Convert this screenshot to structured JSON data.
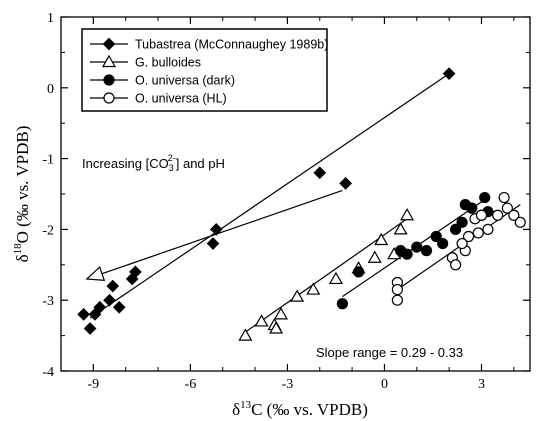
{
  "chart_data": {
    "type": "scatter",
    "xlabel": "δ13C (‰ vs. VPDB)",
    "ylabel": "δ18O (‰ vs. VPDB)",
    "xlabel_parts": {
      "delta": "δ",
      "sup": "13",
      "rest": "C (‰ vs. VPDB)"
    },
    "ylabel_parts": {
      "delta": "δ",
      "sup": "18",
      "rest": "O (‰ vs. VPDB)"
    },
    "xlim": [
      -10,
      4.5
    ],
    "ylim": [
      -4,
      1
    ],
    "xticks": [
      -9,
      -6,
      -3,
      0,
      3
    ],
    "xtick_labels": [
      "-9",
      "-6",
      "-3",
      "0",
      "3"
    ],
    "yticks": [
      -4,
      -3,
      -2,
      -1,
      0,
      1
    ],
    "ytick_labels": [
      "-4",
      "-3",
      "-2",
      "-1",
      "0",
      "1"
    ],
    "grid": false,
    "legend_position": "top-left",
    "series": [
      {
        "name": "Tubastrea (McConnaughey 1989b)",
        "marker": "diamond",
        "filled": true,
        "points": [
          [
            2.0,
            0.2
          ],
          [
            -1.2,
            -1.35
          ],
          [
            -2.0,
            -1.2
          ],
          [
            -5.2,
            -2.0
          ],
          [
            -5.3,
            -2.2
          ],
          [
            -7.7,
            -2.6
          ],
          [
            -7.8,
            -2.7
          ],
          [
            -8.2,
            -3.1
          ],
          [
            -8.4,
            -2.8
          ],
          [
            -8.5,
            -3.0
          ],
          [
            -8.8,
            -3.1
          ],
          [
            -8.95,
            -3.2
          ],
          [
            -9.1,
            -3.4
          ],
          [
            -9.3,
            -3.2
          ]
        ],
        "fit": [
          [
            -9.1,
            -3.25
          ],
          [
            2.0,
            0.2
          ]
        ]
      },
      {
        "name": "G. bulloides",
        "marker": "triangle",
        "filled": false,
        "points": [
          [
            -4.3,
            -3.5
          ],
          [
            -3.8,
            -3.3
          ],
          [
            -3.4,
            -3.35
          ],
          [
            -3.35,
            -3.4
          ],
          [
            -3.2,
            -3.2
          ],
          [
            -2.7,
            -2.95
          ],
          [
            -2.2,
            -2.85
          ],
          [
            -1.5,
            -2.7
          ],
          [
            -0.8,
            -2.55
          ],
          [
            -0.3,
            -2.4
          ],
          [
            -0.1,
            -2.15
          ],
          [
            0.3,
            -2.35
          ],
          [
            0.5,
            -2.0
          ],
          [
            0.7,
            -1.8
          ]
        ],
        "fit": [
          [
            -4.3,
            -3.45
          ],
          [
            0.7,
            -1.85
          ]
        ]
      },
      {
        "name": "O. universa (dark)",
        "marker": "circle",
        "filled": true,
        "points": [
          [
            -1.3,
            -3.05
          ],
          [
            -0.8,
            -2.6
          ],
          [
            0.5,
            -2.3
          ],
          [
            0.7,
            -2.35
          ],
          [
            1.0,
            -2.25
          ],
          [
            1.3,
            -2.3
          ],
          [
            1.6,
            -2.1
          ],
          [
            1.8,
            -2.2
          ],
          [
            2.2,
            -2.0
          ],
          [
            2.4,
            -1.9
          ],
          [
            2.5,
            -1.65
          ],
          [
            2.7,
            -1.7
          ],
          [
            3.0,
            -1.8
          ],
          [
            3.1,
            -1.55
          ],
          [
            3.2,
            -1.75
          ]
        ],
        "fit": [
          [
            -1.3,
            -2.95
          ],
          [
            3.2,
            -1.55
          ]
        ]
      },
      {
        "name": "O. universa (HL)",
        "marker": "circle",
        "filled": false,
        "points": [
          [
            0.4,
            -2.75
          ],
          [
            0.4,
            -2.85
          ],
          [
            0.4,
            -3.0
          ],
          [
            2.1,
            -2.4
          ],
          [
            2.2,
            -2.5
          ],
          [
            2.5,
            -2.3
          ],
          [
            2.6,
            -2.1
          ],
          [
            2.9,
            -2.05
          ],
          [
            3.2,
            -2.0
          ],
          [
            3.5,
            -1.8
          ],
          [
            3.7,
            -1.55
          ],
          [
            3.8,
            -1.7
          ],
          [
            4.0,
            -1.8
          ],
          [
            4.2,
            -1.9
          ],
          [
            2.8,
            -1.85
          ],
          [
            3.0,
            -1.8
          ],
          [
            2.4,
            -2.2
          ]
        ],
        "fit": [
          [
            0.4,
            -2.85
          ],
          [
            4.2,
            -1.65
          ]
        ]
      }
    ],
    "annotations": {
      "arrow": {
        "label": "Increasing [CO3 2-] and pH",
        "from": [
          -1.3,
          -1.45
        ],
        "to": [
          -9.2,
          -2.7
        ]
      },
      "slope_text": "Slope range = 0.29 - 0.33"
    }
  },
  "annotation_text": {
    "increasing_pre": "Increasing [CO",
    "sub": "3",
    "sup": "2-",
    "increasing_post": "] and pH"
  }
}
